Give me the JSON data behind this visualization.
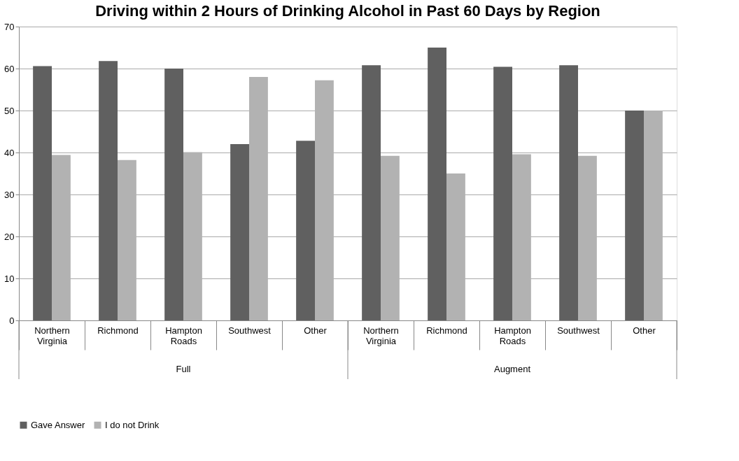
{
  "chart_data": {
    "type": "bar",
    "title": "Driving within 2 Hours of Drinking Alcohol in Past 60 Days by Region",
    "categories": [
      "Northern Virginia",
      "Richmond",
      "Hampton Roads",
      "Southwest",
      "Other",
      "Northern Virginia",
      "Richmond",
      "Hampton Roads",
      "Southwest",
      "Other"
    ],
    "series": [
      {
        "name": "Gave Answer",
        "color": "#606060",
        "values": [
          60.6,
          61.8,
          60.0,
          42.0,
          42.8,
          60.8,
          65.0,
          60.4,
          60.8,
          50.0
        ]
      },
      {
        "name": "I do not Drink",
        "color": "#b2b2b2",
        "values": [
          39.4,
          38.2,
          40.1,
          58.0,
          57.2,
          39.2,
          35.0,
          39.6,
          39.2,
          50.0
        ]
      }
    ],
    "annotations": [
      "Full",
      "Augment"
    ],
    "ylim": [
      0,
      70
    ],
    "yticks": [
      0,
      10,
      20,
      30,
      40,
      50,
      60,
      70
    ],
    "grid": "y",
    "legend": "bottom"
  }
}
